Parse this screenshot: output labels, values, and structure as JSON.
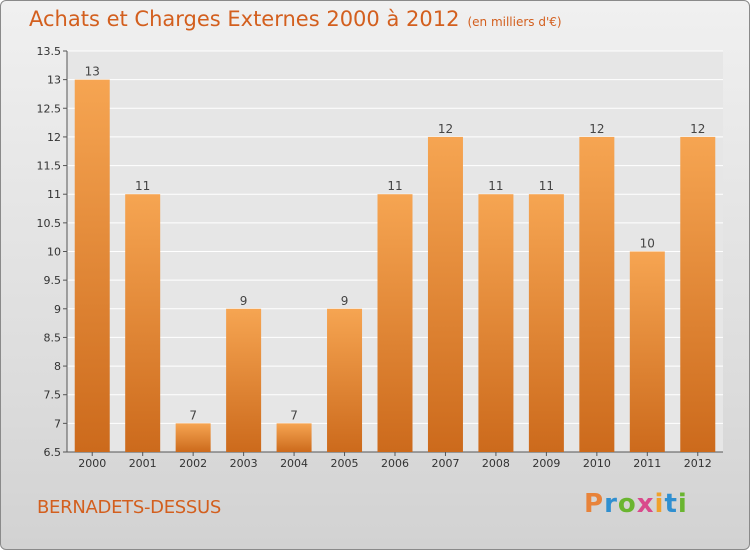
{
  "chart_data": {
    "type": "bar",
    "title": "Achats et Charges Externes 2000 à 2012",
    "subtitle": "(en milliers d'€)",
    "categories": [
      "2000",
      "2001",
      "2002",
      "2003",
      "2004",
      "2005",
      "2006",
      "2007",
      "2008",
      "2009",
      "2010",
      "2011",
      "2012"
    ],
    "values": [
      13,
      11,
      7,
      9,
      7,
      9,
      11,
      12,
      11,
      11,
      12,
      10,
      12
    ],
    "data_labels": [
      "13",
      "11",
      "7",
      "9",
      "7",
      "9",
      "11",
      "12",
      "11",
      "11",
      "12",
      "10",
      "12"
    ],
    "ylim": [
      6.5,
      13.5
    ],
    "yticks": [
      6.5,
      7,
      7.5,
      8,
      8.5,
      9,
      9.5,
      10,
      10.5,
      11,
      11.5,
      12,
      12.5,
      13,
      13.5
    ],
    "ytick_labels": [
      "6.5",
      "7",
      "7.5",
      "8",
      "8.5",
      "9",
      "9.5",
      "10",
      "10.5",
      "11",
      "11.5",
      "12",
      "12.5",
      "13",
      "13.5"
    ],
    "grid": true,
    "colors": {
      "bar_light": "#f6a552",
      "bar_dark": "#cc6a1c",
      "accent": "#d35f1e",
      "grid": "#ffffff"
    }
  },
  "footer": {
    "commune": "BERNADETS-DESSUS",
    "logo": "Proxiti",
    "logo_colors": [
      "#e8833a",
      "#2f8fd0",
      "#6ab530",
      "#d94a8c",
      "#f0a12c",
      "#2f8fd0",
      "#6ab530"
    ]
  }
}
